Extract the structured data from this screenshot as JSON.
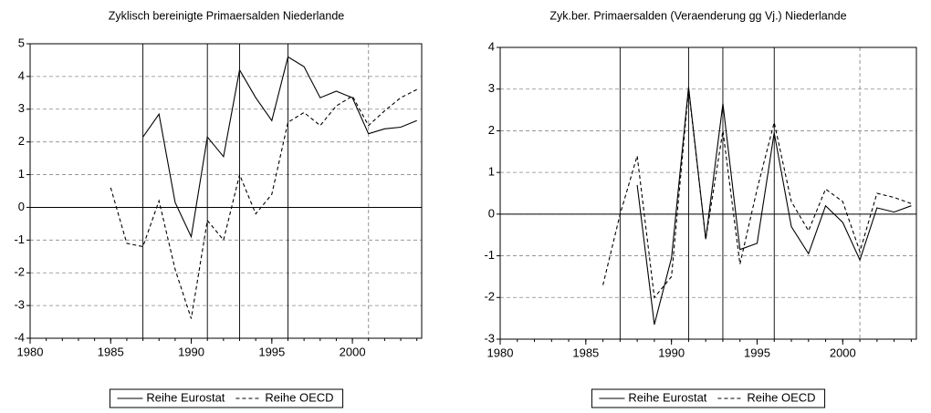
{
  "chart_data": [
    {
      "type": "line",
      "title": "Zyklisch bereinigte Primaersalden Niederlande",
      "x": [
        1985,
        1986,
        1987,
        1988,
        1989,
        1990,
        1991,
        1992,
        1993,
        1994,
        1995,
        1996,
        1997,
        1998,
        1999,
        2000,
        2001,
        2002,
        2003,
        2004
      ],
      "series": [
        {
          "name": "Reihe Eurostat",
          "color": "#000000",
          "dash": "solid",
          "values": [
            null,
            null,
            2.15,
            2.85,
            0.15,
            -0.9,
            2.15,
            1.55,
            4.2,
            3.35,
            2.65,
            4.6,
            4.3,
            3.35,
            3.55,
            3.35,
            2.25,
            2.4,
            2.45,
            2.65
          ]
        },
        {
          "name": "Reihe OECD",
          "color": "#000000",
          "dash": "dashed",
          "values": [
            0.6,
            -1.1,
            -1.2,
            0.2,
            -1.9,
            -3.4,
            -0.4,
            -1.0,
            1.0,
            -0.2,
            0.4,
            2.6,
            2.9,
            2.5,
            3.1,
            3.4,
            2.5,
            2.95,
            3.35,
            3.6
          ]
        }
      ],
      "xlim": [
        1980,
        2004.3
      ],
      "xticks": [
        1980,
        1985,
        1990,
        1995,
        2000
      ],
      "ylim": [
        -4,
        5
      ],
      "yticks": [
        -4,
        -3,
        -2,
        -1,
        0,
        1,
        2,
        3,
        4,
        5
      ],
      "grid": true,
      "vlines_solid": [
        1987,
        1991,
        1993,
        1996
      ],
      "vlines_dashed": [
        2001
      ],
      "legend": "bottom"
    },
    {
      "type": "line",
      "title": "Zyk.ber. Primaersalden (Veraenderung gg Vj.) Niederlande",
      "x": [
        1986,
        1987,
        1988,
        1989,
        1990,
        1991,
        1992,
        1993,
        1994,
        1995,
        1996,
        1997,
        1998,
        1999,
        2000,
        2001,
        2002,
        2003,
        2004
      ],
      "series": [
        {
          "name": "Reihe Eurostat",
          "color": "#000000",
          "dash": "solid",
          "values": [
            null,
            null,
            0.7,
            -2.65,
            -1.05,
            3.05,
            -0.6,
            2.65,
            -0.85,
            -0.7,
            1.95,
            -0.3,
            -0.95,
            0.2,
            -0.2,
            -1.1,
            0.15,
            0.05,
            0.2
          ]
        },
        {
          "name": "Reihe OECD",
          "color": "#000000",
          "dash": "dashed",
          "values": [
            -1.7,
            0.0,
            1.4,
            -2.0,
            -1.5,
            3.0,
            -0.6,
            2.0,
            -1.2,
            0.6,
            2.2,
            0.3,
            -0.4,
            0.6,
            0.3,
            -0.9,
            0.5,
            0.4,
            0.25
          ]
        }
      ],
      "xlim": [
        1980,
        2004.3
      ],
      "xticks": [
        1980,
        1985,
        1990,
        1995,
        2000
      ],
      "ylim": [
        -3,
        4
      ],
      "yticks": [
        -3,
        -2,
        -1,
        0,
        1,
        2,
        3,
        4
      ],
      "grid": true,
      "vlines_solid": [
        1987,
        1991,
        1993,
        1996
      ],
      "vlines_dashed": [
        2001
      ],
      "legend": "bottom"
    }
  ]
}
